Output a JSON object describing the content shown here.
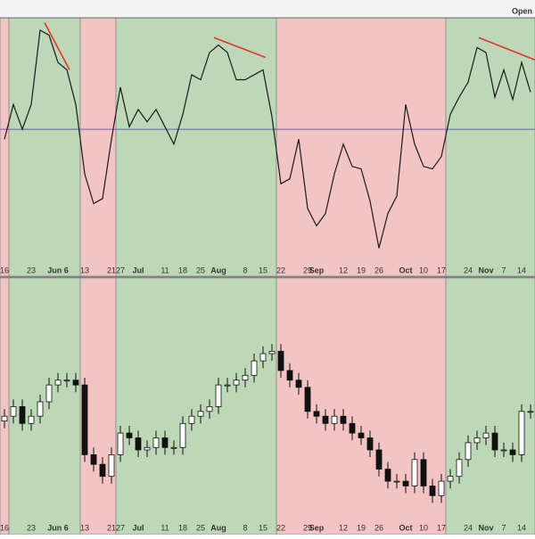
{
  "chart_data": [
    {
      "type": "line",
      "title": "Open",
      "categories": [
        "16",
        null,
        null,
        "23",
        null,
        null,
        "Jun 6",
        null,
        null,
        "13",
        null,
        null,
        "21",
        "27",
        null,
        "Jul",
        null,
        null,
        "11",
        null,
        "18",
        null,
        "25",
        null,
        "Aug",
        null,
        null,
        "8",
        null,
        "15",
        null,
        "22",
        null,
        null,
        "29",
        "Sep",
        null,
        null,
        "12",
        null,
        "19",
        null,
        "26",
        null,
        null,
        "Oct",
        null,
        "10",
        null,
        "17",
        null,
        null,
        "24",
        null,
        "Nov",
        null,
        "7",
        null,
        "14",
        null
      ],
      "values": [
        51,
        65,
        55,
        65,
        95,
        93,
        82,
        79,
        65,
        37,
        25,
        27,
        51,
        72,
        56,
        63,
        58,
        63,
        56,
        49,
        61,
        77,
        75,
        86,
        89,
        86,
        75,
        75,
        77,
        79,
        60,
        33,
        35,
        51,
        23,
        16,
        21,
        37,
        49,
        40,
        39,
        26,
        7,
        21,
        28,
        65,
        49,
        40,
        39,
        44,
        61,
        68,
        74,
        88,
        86,
        68,
        79,
        67,
        82,
        70
      ],
      "color": "#1a1a1a",
      "ylim": [
        0,
        100
      ],
      "midline": 55,
      "midline_color": "#6a5acd",
      "regions": [
        {
          "start": 0,
          "end": 1,
          "color": "#f2c4c4"
        },
        {
          "start": 1,
          "end": 9,
          "color": "#bcd8b7"
        },
        {
          "start": 9,
          "end": 13,
          "color": "#f2c4c4"
        },
        {
          "start": 13,
          "end": 31,
          "color": "#bcd8b7"
        },
        {
          "start": 31,
          "end": 50,
          "color": "#f2c4c4"
        },
        {
          "start": 50,
          "end": 60,
          "color": "#bcd8b7"
        }
      ],
      "trendlines": [
        {
          "color": "#e8332a",
          "x": [
            4.5,
            7.3
          ],
          "y": [
            98,
            79
          ]
        },
        {
          "color": "#e8332a",
          "x": [
            23.5,
            29.3
          ],
          "y": [
            92,
            84
          ]
        },
        {
          "color": "#e8332a",
          "x": [
            53.2,
            59.5
          ],
          "y": [
            92,
            83
          ]
        }
      ]
    },
    {
      "type": "candlestick",
      "categories": [
        "16",
        null,
        null,
        "23",
        null,
        null,
        "Jun 6",
        null,
        null,
        "13",
        null,
        null,
        "21",
        "27",
        null,
        "Jul",
        null,
        null,
        "11",
        null,
        "18",
        null,
        "25",
        null,
        "Aug",
        null,
        null,
        "8",
        null,
        "15",
        null,
        "22",
        null,
        null,
        "29",
        "Sep",
        null,
        null,
        "12",
        null,
        "19",
        null,
        "26",
        null,
        null,
        "Oct",
        null,
        "10",
        null,
        "17",
        null,
        null,
        "24",
        null,
        "Nov",
        null,
        "7",
        null,
        "14",
        null
      ],
      "open": [
        42,
        44,
        48,
        41,
        44,
        50,
        57,
        59,
        59,
        57,
        28,
        24,
        19,
        28,
        37,
        35,
        30,
        31,
        35,
        31,
        31,
        41,
        44,
        46,
        48,
        57,
        57,
        59,
        61,
        67,
        70,
        71,
        63,
        59,
        56,
        46,
        44,
        41,
        44,
        41,
        37,
        35,
        30,
        22,
        17,
        17,
        15,
        26,
        15,
        11,
        17,
        19,
        26,
        33,
        35,
        37,
        30,
        30,
        28,
        46
      ],
      "high": [
        47,
        51,
        51,
        47,
        53,
        60,
        62,
        62,
        62,
        60,
        31,
        27,
        31,
        40,
        40,
        38,
        34,
        38,
        38,
        34,
        44,
        47,
        49,
        51,
        60,
        60,
        62,
        64,
        70,
        73,
        74,
        74,
        66,
        62,
        59,
        49,
        47,
        47,
        47,
        44,
        40,
        38,
        33,
        25,
        20,
        20,
        29,
        29,
        18,
        20,
        22,
        29,
        36,
        38,
        40,
        40,
        33,
        33,
        49,
        49
      ],
      "low": [
        39,
        41,
        38,
        38,
        41,
        47,
        54,
        56,
        54,
        25,
        21,
        16,
        16,
        25,
        32,
        27,
        27,
        28,
        28,
        28,
        28,
        38,
        41,
        43,
        45,
        54,
        54,
        56,
        58,
        64,
        67,
        60,
        56,
        53,
        43,
        41,
        38,
        38,
        38,
        34,
        32,
        27,
        19,
        14,
        14,
        12,
        12,
        12,
        8,
        8,
        14,
        16,
        23,
        30,
        32,
        27,
        27,
        25,
        25,
        43
      ],
      "close": [
        44,
        48,
        41,
        44,
        50,
        57,
        59,
        59,
        57,
        28,
        24,
        19,
        28,
        37,
        35,
        30,
        31,
        35,
        31,
        31,
        41,
        44,
        46,
        48,
        57,
        57,
        59,
        61,
        67,
        70,
        71,
        63,
        59,
        56,
        46,
        44,
        41,
        44,
        41,
        37,
        35,
        30,
        22,
        17,
        17,
        15,
        26,
        15,
        11,
        17,
        19,
        26,
        33,
        35,
        37,
        30,
        30,
        28,
        46,
        46
      ],
      "ylim": [
        0,
        100
      ],
      "up_color": "#ffffff",
      "down_color": "#111111",
      "regions": [
        {
          "start": 0,
          "end": 1,
          "color": "#f2c4c4"
        },
        {
          "start": 1,
          "end": 9,
          "color": "#bcd8b7"
        },
        {
          "start": 9,
          "end": 13,
          "color": "#f2c4c4"
        },
        {
          "start": 13,
          "end": 31,
          "color": "#bcd8b7"
        },
        {
          "start": 31,
          "end": 50,
          "color": "#f2c4c4"
        },
        {
          "start": 50,
          "end": 60,
          "color": "#bcd8b7"
        }
      ]
    }
  ]
}
